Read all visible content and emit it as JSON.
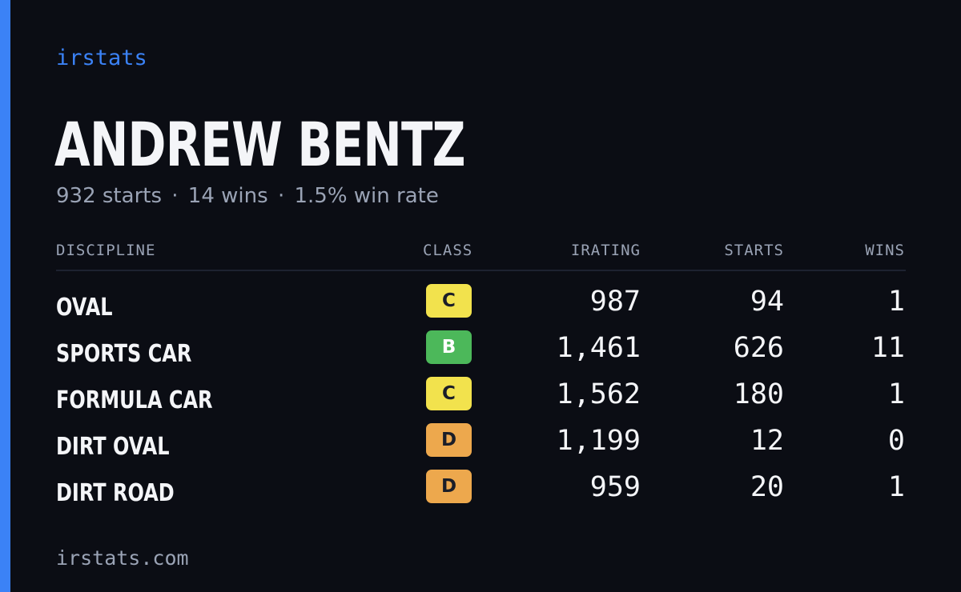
{
  "brand": "irstats",
  "player": {
    "name": "ANDREW BENTZ",
    "starts_text": "932 starts",
    "wins_text": "14 wins",
    "win_rate_text": "1.5% win rate",
    "separator": "·"
  },
  "table": {
    "headers": {
      "discipline": "DISCIPLINE",
      "class": "CLASS",
      "irating": "IRATING",
      "starts": "STARTS",
      "wins": "WINS"
    },
    "rows": [
      {
        "discipline": "OVAL",
        "class": "C",
        "irating": "987",
        "starts": "94",
        "wins": "1"
      },
      {
        "discipline": "SPORTS CAR",
        "class": "B",
        "irating": "1,461",
        "starts": "626",
        "wins": "11"
      },
      {
        "discipline": "FORMULA CAR",
        "class": "C",
        "irating": "1,562",
        "starts": "180",
        "wins": "1"
      },
      {
        "discipline": "DIRT OVAL",
        "class": "D",
        "irating": "1,199",
        "starts": "12",
        "wins": "0"
      },
      {
        "discipline": "DIRT ROAD",
        "class": "D",
        "irating": "959",
        "starts": "20",
        "wins": "1"
      }
    ]
  },
  "class_colors": {
    "B": "#4cb85a",
    "C": "#f2e24d",
    "D": "#eda84d"
  },
  "accent_color": "#3b82f6",
  "footer": {
    "url": "irstats.com"
  }
}
